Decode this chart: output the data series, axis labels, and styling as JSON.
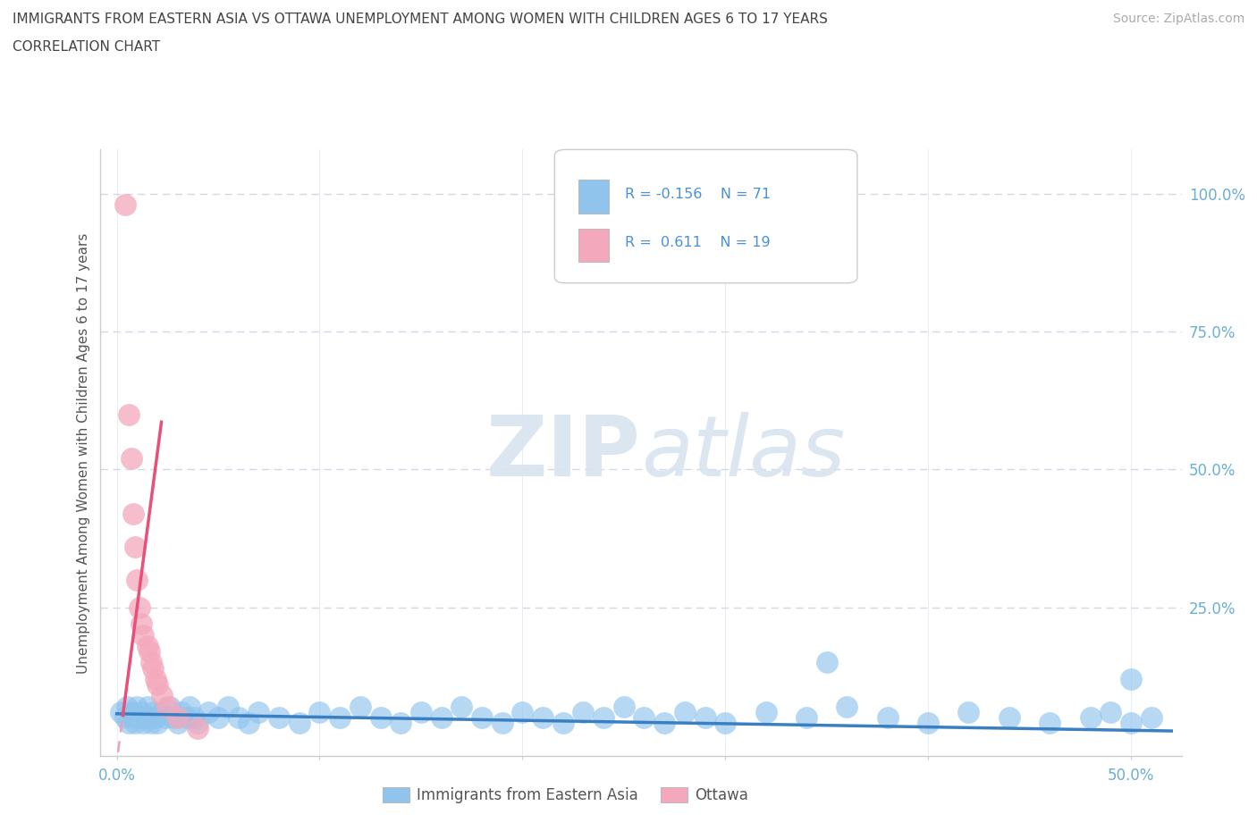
{
  "title_line1": "IMMIGRANTS FROM EASTERN ASIA VS OTTAWA UNEMPLOYMENT AMONG WOMEN WITH CHILDREN AGES 6 TO 17 YEARS",
  "title_line2": "CORRELATION CHART",
  "source_text": "Source: ZipAtlas.com",
  "ylabel": "Unemployment Among Women with Children Ages 6 to 17 years",
  "xlim": [
    -0.008,
    0.525
  ],
  "ylim": [
    -0.02,
    1.08
  ],
  "xticks": [
    0.0,
    0.1,
    0.2,
    0.3,
    0.4,
    0.5
  ],
  "xticklabels": [
    "0.0%",
    "",
    "",
    "",
    "",
    "50.0%"
  ],
  "ytick_positions": [
    0.25,
    0.5,
    0.75,
    1.0
  ],
  "ytick_labels_right": [
    "25.0%",
    "50.0%",
    "75.0%",
    "100.0%"
  ],
  "watermark": "ZIPatlas",
  "color_blue": "#90c4ed",
  "color_pink": "#f4a8bb",
  "color_blue_line": "#3a7fc1",
  "color_pink_line": "#e8507a",
  "color_pink_dashed": "#f0a0bb",
  "grid_color": "#d0d8e8",
  "title_color": "#444444",
  "tick_color": "#6baed6",
  "blue_x": [
    0.002,
    0.004,
    0.005,
    0.006,
    0.007,
    0.008,
    0.009,
    0.01,
    0.011,
    0.012,
    0.013,
    0.014,
    0.015,
    0.016,
    0.017,
    0.018,
    0.019,
    0.02,
    0.022,
    0.024,
    0.026,
    0.028,
    0.03,
    0.032,
    0.034,
    0.036,
    0.038,
    0.04,
    0.045,
    0.05,
    0.055,
    0.06,
    0.065,
    0.07,
    0.08,
    0.09,
    0.1,
    0.11,
    0.12,
    0.13,
    0.14,
    0.15,
    0.16,
    0.17,
    0.18,
    0.19,
    0.2,
    0.21,
    0.22,
    0.23,
    0.24,
    0.25,
    0.26,
    0.27,
    0.28,
    0.29,
    0.3,
    0.32,
    0.34,
    0.36,
    0.38,
    0.4,
    0.42,
    0.44,
    0.46,
    0.35,
    0.48,
    0.49,
    0.5,
    0.51,
    0.5
  ],
  "blue_y": [
    0.06,
    0.05,
    0.07,
    0.04,
    0.06,
    0.05,
    0.04,
    0.07,
    0.05,
    0.06,
    0.04,
    0.05,
    0.07,
    0.05,
    0.04,
    0.06,
    0.05,
    0.04,
    0.06,
    0.05,
    0.07,
    0.05,
    0.04,
    0.06,
    0.05,
    0.07,
    0.05,
    0.04,
    0.06,
    0.05,
    0.07,
    0.05,
    0.04,
    0.06,
    0.05,
    0.04,
    0.06,
    0.05,
    0.07,
    0.05,
    0.04,
    0.06,
    0.05,
    0.07,
    0.05,
    0.04,
    0.06,
    0.05,
    0.04,
    0.06,
    0.05,
    0.07,
    0.05,
    0.04,
    0.06,
    0.05,
    0.04,
    0.06,
    0.05,
    0.07,
    0.05,
    0.04,
    0.06,
    0.05,
    0.04,
    0.15,
    0.05,
    0.06,
    0.04,
    0.05,
    0.12
  ],
  "pink_x": [
    0.004,
    0.006,
    0.007,
    0.008,
    0.009,
    0.01,
    0.011,
    0.012,
    0.013,
    0.015,
    0.016,
    0.017,
    0.018,
    0.019,
    0.02,
    0.022,
    0.025,
    0.03,
    0.04
  ],
  "pink_y": [
    0.98,
    0.6,
    0.52,
    0.42,
    0.36,
    0.3,
    0.25,
    0.22,
    0.2,
    0.18,
    0.17,
    0.15,
    0.14,
    0.12,
    0.11,
    0.09,
    0.07,
    0.05,
    0.03
  ]
}
